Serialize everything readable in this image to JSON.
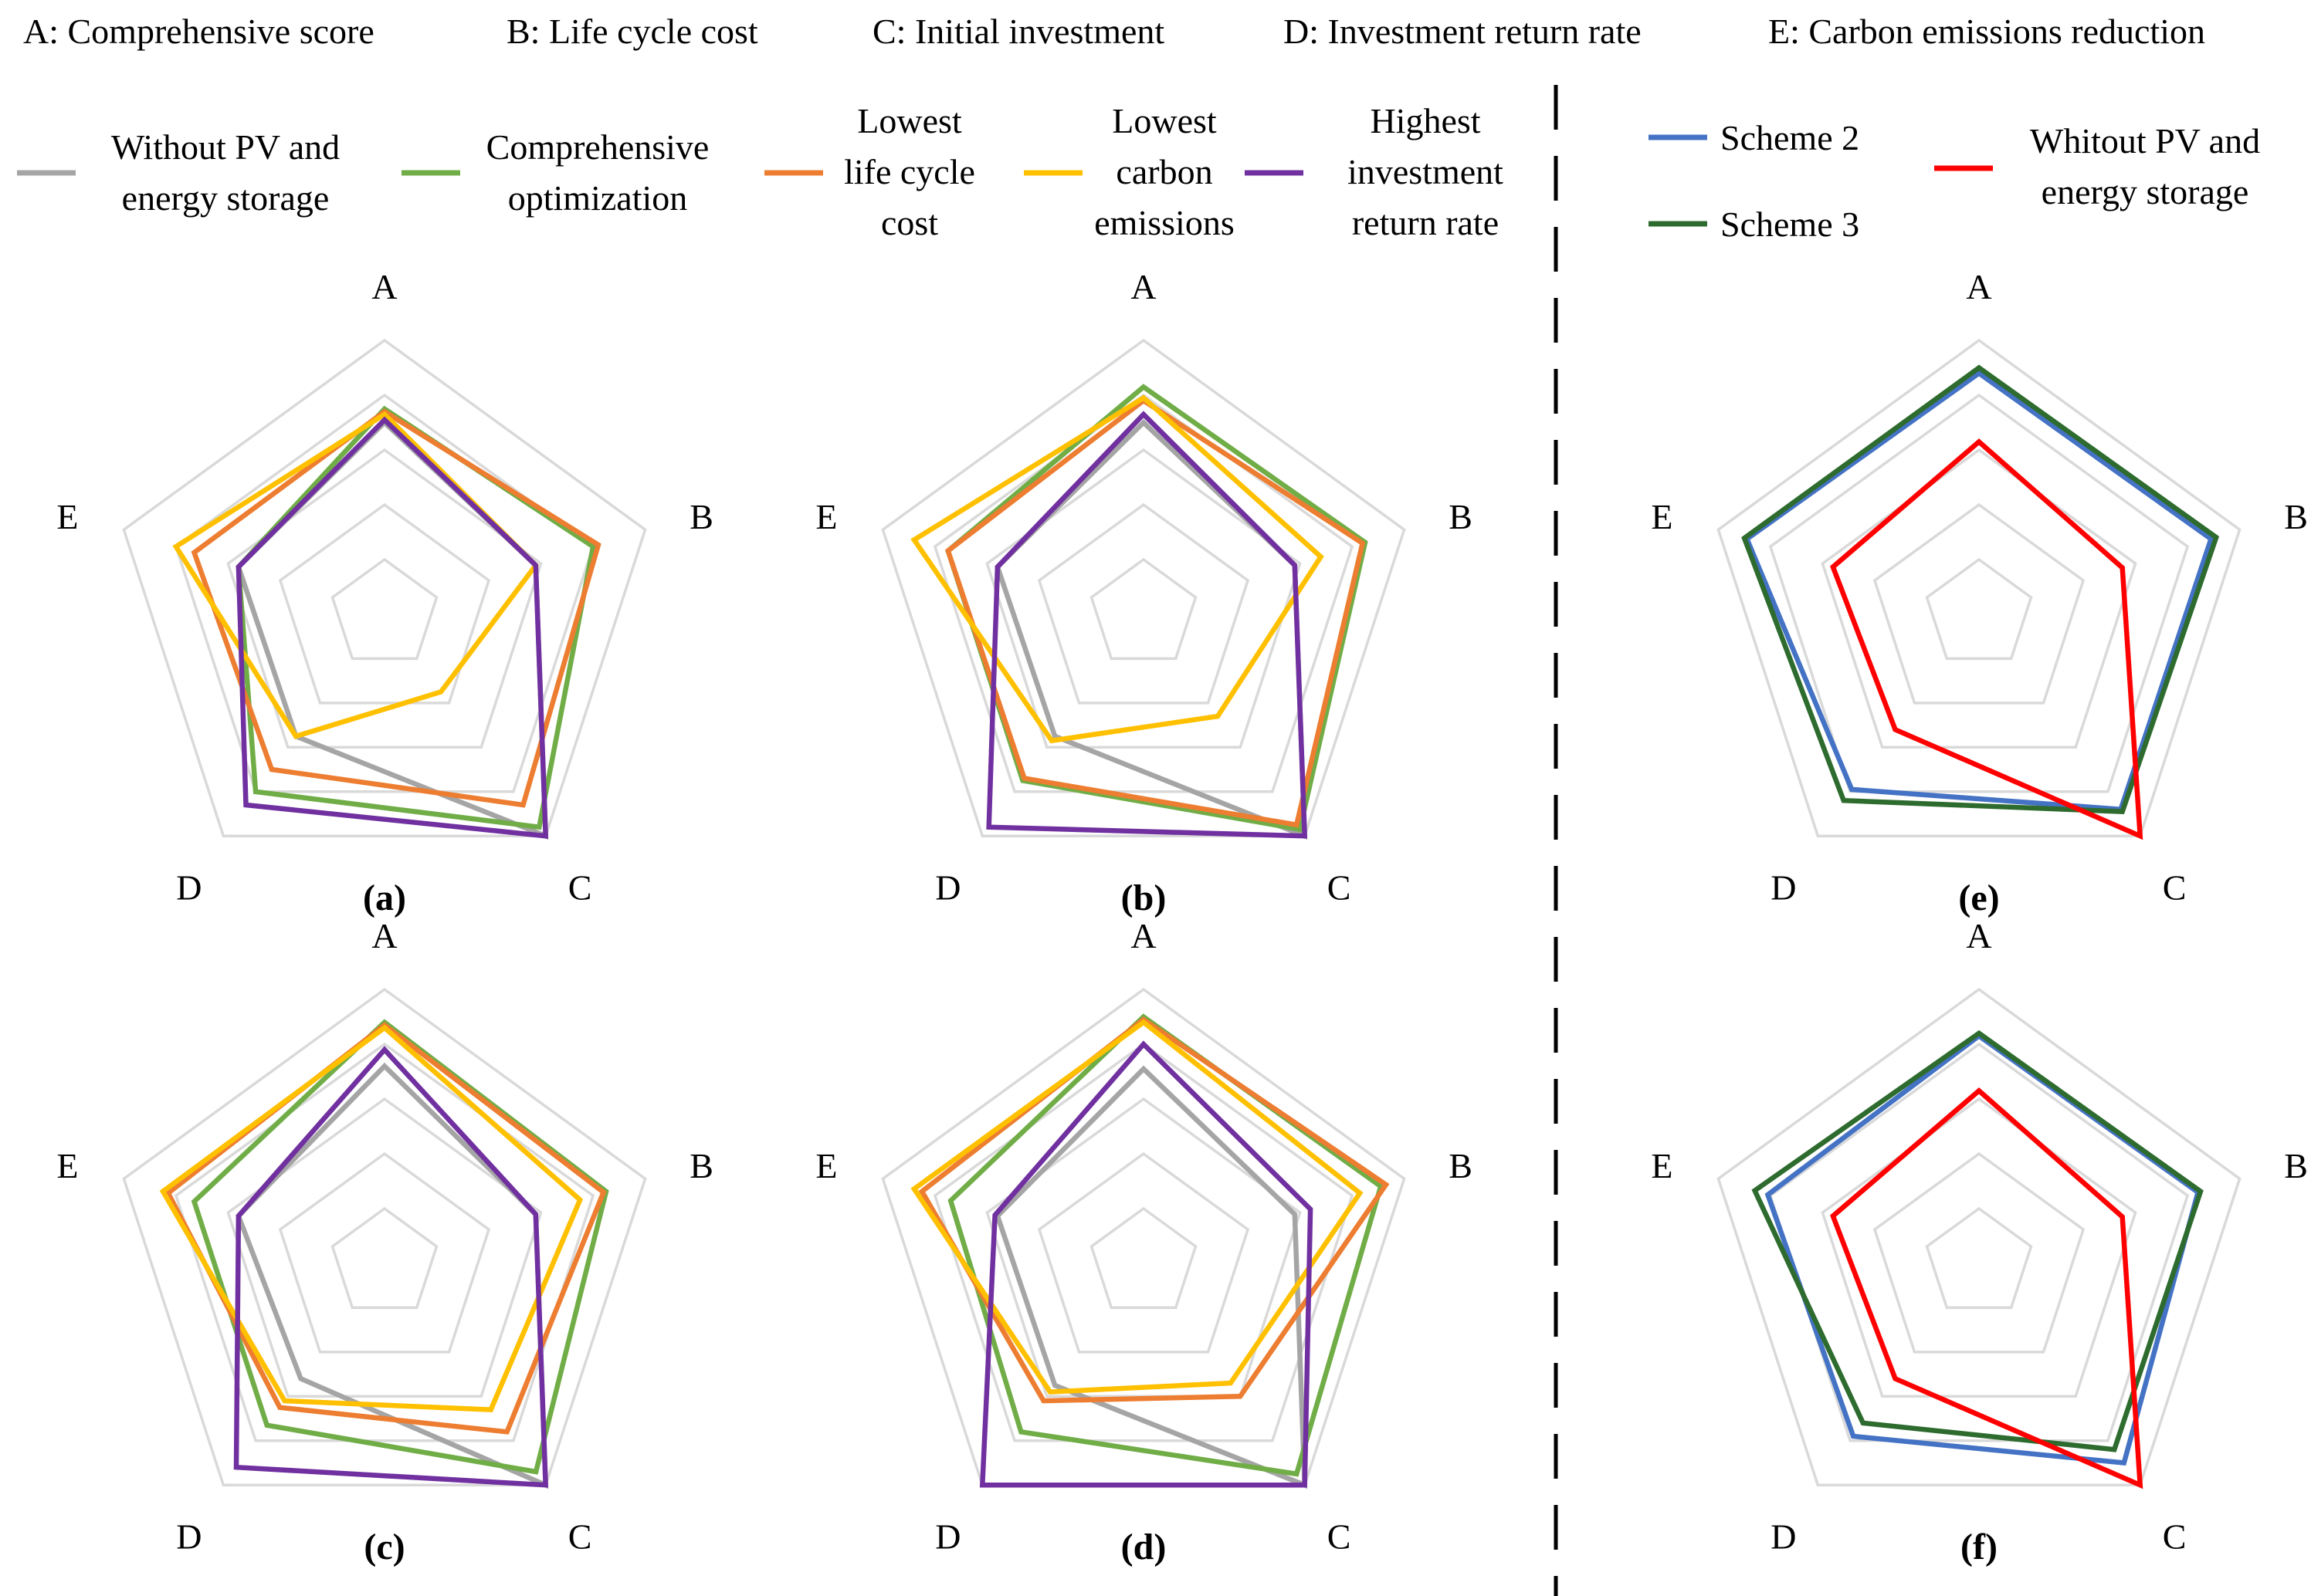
{
  "axis_legend": [
    "A: Comprehensive score",
    "B: Life cycle cost",
    "C: Initial investment",
    "D: Investment return rate",
    "E: Carbon emissions reduction"
  ],
  "legend_left": [
    {
      "lines": [
        "Without PV and",
        "energy storage"
      ],
      "color": "#A5A5A5"
    },
    {
      "lines": [
        "Comprehensive",
        "optimization"
      ],
      "color": "#70AD47"
    },
    {
      "lines": [
        "Lowest",
        "life cycle",
        "cost"
      ],
      "color": "#ED7D31"
    },
    {
      "lines": [
        "Lowest",
        "carbon",
        "emissions"
      ],
      "color": "#FFC000"
    },
    {
      "lines": [
        "Highest",
        "investment",
        "return rate"
      ],
      "color": "#7030A0"
    }
  ],
  "legend_right": [
    {
      "lines": [
        "Scheme 2"
      ],
      "color": "#4472C4"
    },
    {
      "lines": [
        "Scheme 3"
      ],
      "color": "#2E6B2E"
    },
    {
      "lines": [
        "Whitout PV and",
        "energy storage"
      ],
      "color": "#FF0000"
    }
  ],
  "chart_data": [
    {
      "type": "radar",
      "panel": "(a)",
      "axes": [
        "A",
        "B",
        "C",
        "D",
        "E"
      ],
      "rmax": 1.0,
      "rings": [
        0.2,
        0.4,
        0.6,
        0.8,
        1.0
      ],
      "series": [
        {
          "name": "Without PV and energy storage",
          "color": "#A5A5A5",
          "values": [
            0.7,
            0.58,
            1.0,
            0.55,
            0.56
          ]
        },
        {
          "name": "Comprehensive optimization",
          "color": "#70AD47",
          "values": [
            0.75,
            0.8,
            0.96,
            0.8,
            0.56
          ]
        },
        {
          "name": "Lowest life cycle cost",
          "color": "#ED7D31",
          "values": [
            0.74,
            0.82,
            0.86,
            0.7,
            0.73
          ]
        },
        {
          "name": "Lowest carbon emissions",
          "color": "#FFC000",
          "values": [
            0.73,
            0.58,
            0.35,
            0.55,
            0.8
          ]
        },
        {
          "name": "Highest investment return rate",
          "color": "#7030A0",
          "values": [
            0.71,
            0.58,
            1.0,
            0.86,
            0.56
          ]
        }
      ]
    },
    {
      "type": "radar",
      "panel": "(b)",
      "axes": [
        "A",
        "B",
        "C",
        "D",
        "E"
      ],
      "rmax": 1.0,
      "rings": [
        0.2,
        0.4,
        0.6,
        0.8,
        1.0
      ],
      "series": [
        {
          "name": "Without PV and energy storage",
          "color": "#A5A5A5",
          "values": [
            0.7,
            0.58,
            1.0,
            0.55,
            0.56
          ]
        },
        {
          "name": "Comprehensive optimization",
          "color": "#70AD47",
          "values": [
            0.83,
            0.85,
            0.97,
            0.75,
            0.75
          ]
        },
        {
          "name": "Lowest life cycle cost",
          "color": "#ED7D31",
          "values": [
            0.78,
            0.84,
            0.95,
            0.74,
            0.75
          ]
        },
        {
          "name": "Lowest carbon emissions",
          "color": "#FFC000",
          "values": [
            0.79,
            0.68,
            0.46,
            0.57,
            0.88
          ]
        },
        {
          "name": "Highest investment return rate",
          "color": "#7030A0",
          "values": [
            0.73,
            0.58,
            1.0,
            0.96,
            0.56
          ]
        }
      ]
    },
    {
      "type": "radar",
      "panel": "(c)",
      "axes": [
        "A",
        "B",
        "C",
        "D",
        "E"
      ],
      "rmax": 1.0,
      "rings": [
        0.2,
        0.4,
        0.6,
        0.8,
        1.0
      ],
      "series": [
        {
          "name": "Without PV and energy storage",
          "color": "#A5A5A5",
          "values": [
            0.72,
            0.58,
            1.0,
            0.52,
            0.56
          ]
        },
        {
          "name": "Comprehensive optimization",
          "color": "#70AD47",
          "values": [
            0.88,
            0.85,
            0.94,
            0.73,
            0.73
          ]
        },
        {
          "name": "Lowest life cycle cost",
          "color": "#ED7D31",
          "values": [
            0.87,
            0.84,
            0.76,
            0.65,
            0.83
          ]
        },
        {
          "name": "Lowest carbon emissions",
          "color": "#FFC000",
          "values": [
            0.86,
            0.75,
            0.66,
            0.62,
            0.85
          ]
        },
        {
          "name": "Highest investment return rate",
          "color": "#7030A0",
          "values": [
            0.78,
            0.58,
            1.0,
            0.92,
            0.56
          ]
        }
      ]
    },
    {
      "type": "radar",
      "panel": "(d)",
      "axes": [
        "A",
        "B",
        "C",
        "D",
        "E"
      ],
      "rmax": 1.0,
      "rings": [
        0.2,
        0.4,
        0.6,
        0.8,
        1.0
      ],
      "series": [
        {
          "name": "Without PV and energy storage",
          "color": "#A5A5A5",
          "values": [
            0.71,
            0.58,
            1.0,
            0.55,
            0.56
          ]
        },
        {
          "name": "Comprehensive optimization",
          "color": "#70AD47",
          "values": [
            0.9,
            0.91,
            0.95,
            0.76,
            0.74
          ]
        },
        {
          "name": "Lowest life cycle cost",
          "color": "#ED7D31",
          "values": [
            0.89,
            0.93,
            0.6,
            0.62,
            0.85
          ]
        },
        {
          "name": "Lowest carbon emissions",
          "color": "#FFC000",
          "values": [
            0.88,
            0.83,
            0.54,
            0.58,
            0.88
          ]
        },
        {
          "name": "Highest investment return rate",
          "color": "#7030A0",
          "values": [
            0.8,
            0.64,
            1.0,
            1.0,
            0.57
          ]
        }
      ]
    },
    {
      "type": "radar",
      "panel": "(e)",
      "axes": [
        "A",
        "B",
        "C",
        "D",
        "E"
      ],
      "rmax": 1.0,
      "rings": [
        0.2,
        0.4,
        0.6,
        0.8,
        1.0
      ],
      "series": [
        {
          "name": "Scheme 2",
          "color": "#4472C4",
          "values": [
            0.88,
            0.89,
            0.88,
            0.79,
            0.89
          ]
        },
        {
          "name": "Scheme 3",
          "color": "#2E6B2E",
          "values": [
            0.9,
            0.91,
            0.89,
            0.84,
            0.9
          ]
        },
        {
          "name": "Whitout PV and energy storage",
          "color": "#FF0000",
          "values": [
            0.63,
            0.55,
            1.0,
            0.52,
            0.56
          ]
        }
      ]
    },
    {
      "type": "radar",
      "panel": "(f)",
      "axes": [
        "A",
        "B",
        "C",
        "D",
        "E"
      ],
      "rmax": 1.0,
      "rings": [
        0.2,
        0.4,
        0.6,
        0.8,
        1.0
      ],
      "series": [
        {
          "name": "Scheme 2",
          "color": "#4472C4",
          "values": [
            0.83,
            0.84,
            0.9,
            0.78,
            0.81
          ]
        },
        {
          "name": "Scheme 3",
          "color": "#2E6B2E",
          "values": [
            0.84,
            0.85,
            0.84,
            0.72,
            0.86
          ]
        },
        {
          "name": "Whitout PV and energy storage",
          "color": "#FF0000",
          "values": [
            0.63,
            0.55,
            1.0,
            0.52,
            0.56
          ]
        }
      ]
    }
  ]
}
